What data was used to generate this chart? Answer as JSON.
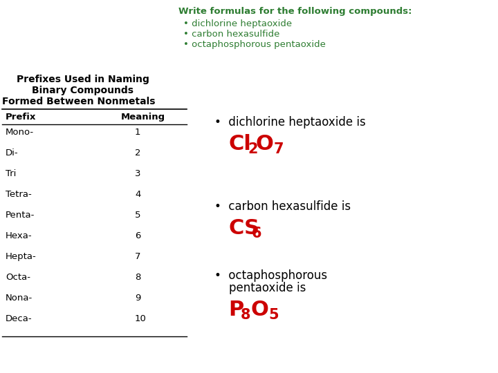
{
  "bg_color": "#ffffff",
  "title_color": "#2e7d32",
  "title_text": "Write formulas for the following compounds:",
  "bullet_items_top": [
    "• dichlorine heptaoxide",
    "• carbon hexasulfide",
    "• octaphosphorous pentaoxide"
  ],
  "table_title_lines": [
    "Prefixes Used in Naming",
    "Binary Compounds",
    "Formed Between Nonmetals"
  ],
  "table_headers": [
    "Prefix",
    "Meaning"
  ],
  "table_rows": [
    [
      "Mono-",
      "1"
    ],
    [
      "Di-",
      "2"
    ],
    [
      "Tri",
      "3"
    ],
    [
      "Tetra-",
      "4"
    ],
    [
      "Penta-",
      "5"
    ],
    [
      "Hexa-",
      "6"
    ],
    [
      "Hepta-",
      "7"
    ],
    [
      "Octa-",
      "8"
    ],
    [
      "Nona-",
      "9"
    ],
    [
      "Deca-",
      "10"
    ]
  ],
  "formula_color": "#cc0000",
  "black_color": "#000000",
  "green_color": "#2e7d32"
}
